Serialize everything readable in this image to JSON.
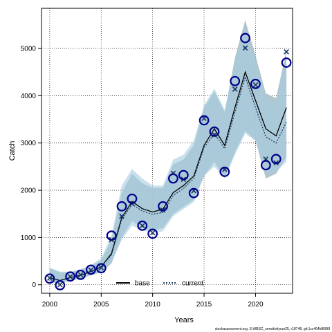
{
  "chart_data": {
    "type": "line",
    "xlabel": "Years",
    "ylabel": "Catch",
    "xlim": [
      1999.2,
      2023.6
    ],
    "ylim": [
      -180,
      5850
    ],
    "x_ticks": [
      2000,
      2005,
      2010,
      2015,
      2020
    ],
    "y_ticks": [
      0,
      1000,
      2000,
      3000,
      4000,
      5000
    ],
    "grid": true,
    "legend_position": "bottom",
    "x": [
      2000,
      2001,
      2002,
      2003,
      2004,
      2005,
      2006,
      2007,
      2008,
      2009,
      2010,
      2011,
      2012,
      2013,
      2014,
      2015,
      2016,
      2017,
      2018,
      2019,
      2020,
      2021,
      2022,
      2023
    ],
    "observed": [
      130,
      -10,
      175,
      210,
      320,
      350,
      1040,
      1660,
      1820,
      1250,
      1080,
      1660,
      2250,
      2320,
      1940,
      3480,
      3240,
      2390,
      4310,
      5220,
      4250,
      2530,
      2660,
      4700
    ],
    "series": [
      {
        "name": "base",
        "color": "#000000",
        "dash": "solid",
        "expected": [
          140,
          0,
          170,
          210,
          310,
          360,
          950,
          1450,
          1720,
          1250,
          1100,
          1580,
          2360,
          2230,
          1990,
          3520,
          3170,
          2440,
          4140,
          5010,
          4230,
          2660,
          2580,
          4930
        ],
        "trend": [
          150,
          90,
          155,
          200,
          280,
          380,
          660,
          1420,
          1760,
          1610,
          1540,
          1600,
          1950,
          2100,
          2300,
          2950,
          3300,
          2950,
          3750,
          4500,
          3900,
          3300,
          3150,
          3750
        ],
        "band_lower": [
          50,
          30,
          90,
          130,
          200,
          260,
          450,
          1000,
          1350,
          1200,
          1150,
          1200,
          1500,
          1650,
          1800,
          2300,
          2600,
          2250,
          2800,
          3250,
          3050,
          2250,
          2350,
          2700
        ],
        "band_upper": [
          350,
          260,
          270,
          320,
          400,
          520,
          950,
          1950,
          2350,
          2150,
          2050,
          2050,
          2550,
          2650,
          2950,
          3750,
          4100,
          3650,
          4800,
          5600,
          4850,
          4050,
          3950,
          4950
        ],
        "band_color": "#a9bfc6"
      },
      {
        "name": "current",
        "color": "#1c3c68",
        "dash": "dotted",
        "expected": [
          140,
          0,
          170,
          210,
          310,
          360,
          950,
          1450,
          1720,
          1250,
          1100,
          1580,
          2360,
          2230,
          1990,
          3520,
          3170,
          2440,
          4140,
          5010,
          4230,
          2660,
          2580,
          4930
        ],
        "trend": [
          150,
          90,
          155,
          200,
          280,
          380,
          630,
          1380,
          1700,
          1560,
          1490,
          1530,
          1890,
          2040,
          2250,
          2900,
          3200,
          2880,
          3650,
          4400,
          3750,
          3130,
          3000,
          3440
        ],
        "band_lower": [
          80,
          40,
          100,
          140,
          210,
          270,
          480,
          950,
          1250,
          1150,
          1100,
          1130,
          1450,
          1600,
          1750,
          2300,
          2500,
          2250,
          2750,
          3200,
          3050,
          2350,
          2400,
          2600
        ],
        "band_upper": [
          360,
          280,
          280,
          330,
          420,
          560,
          1050,
          2100,
          2450,
          2250,
          2100,
          2100,
          2650,
          2750,
          3050,
          3800,
          4150,
          3700,
          4700,
          5450,
          4750,
          3950,
          3850,
          4800
        ],
        "band_color": "#a6cde1"
      }
    ]
  },
  "legend": [
    {
      "label": "base",
      "color": "#000000",
      "dash": "solid"
    },
    {
      "label": "current",
      "color": "#1c3c68",
      "dash": "dotted"
    }
  ],
  "footer": "stockassessment.org, S-WBSC_sensitivityrun25, r18748, git:1cc464b8086f"
}
